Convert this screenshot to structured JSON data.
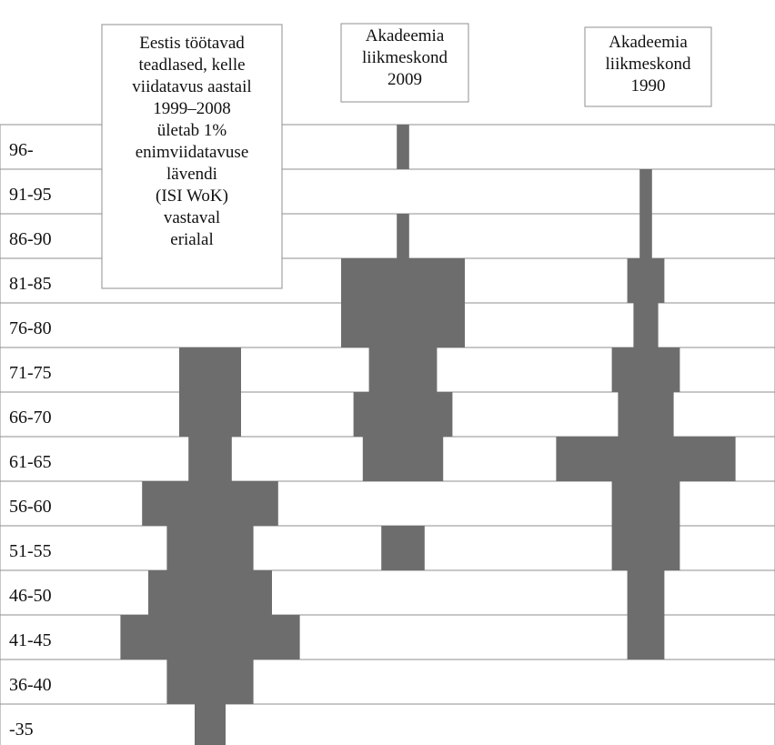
{
  "chart_data": {
    "type": "bar",
    "categories": [
      "96-",
      "91-95",
      "86-90",
      "81-85",
      "76-80",
      "71-75",
      "66-70",
      "61-65",
      "56-60",
      "51-55",
      "46-50",
      "41-45",
      "36-40",
      "-35"
    ],
    "series": [
      {
        "name": "Eestis töötavad teadlased, kelle viidatavus aastail 1999–2008 ületab 1% enimviidatavuse lävendi (ISI WoK) vastaval erialal",
        "values": [
          0,
          0,
          0,
          0,
          0,
          10,
          10,
          7,
          22,
          14,
          20,
          29,
          14,
          5
        ],
        "center": 231,
        "color": "#6d6d6d",
        "legend_lines": [
          "Eestis töötavad",
          "teadlased, kelle",
          "viidatavus aastail",
          "1999–2008",
          "ületab 1%",
          "enimviidatavuse",
          "lävendi",
          "(ISI WoK)",
          "vastaval",
          "erialal"
        ]
      },
      {
        "name": "Akadeemia liikmeskond 2009",
        "values": [
          2,
          0,
          2,
          20,
          20,
          11,
          16,
          13,
          0,
          7,
          0,
          0,
          0,
          0
        ],
        "center": 443,
        "color": "#6d6d6d",
        "legend_lines": [
          "Akadeemia",
          "liikmeskond",
          "2009"
        ]
      },
      {
        "name": "Akadeemia liikmeskond 1990",
        "values": [
          0,
          2,
          2,
          6,
          4,
          11,
          9,
          29,
          11,
          11,
          6,
          6,
          0,
          0
        ],
        "center": 710,
        "color": "#6d6d6d",
        "legend_lines": [
          "Akadeemia",
          "liikmeskond",
          "1990"
        ]
      }
    ],
    "xlabel": "",
    "ylabel": "",
    "grid": false
  }
}
